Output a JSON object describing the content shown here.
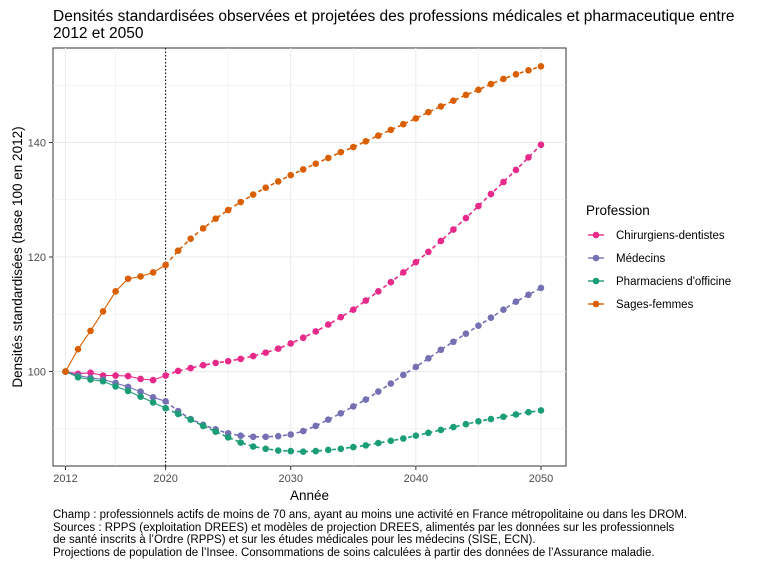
{
  "title": "Densités standardisées observées et projetées des professions médicales et pharmaceutique entre 2012 et 2050",
  "caption": [
    "Champ : professionnels actifs de moins de 70 ans, ayant au moins une activité en France métropolitaine ou dans les DROM.",
    "Sources : RPPS (exploitation DREES) et modèles de projection DREES, alimentés par les données sur les professionnels",
    "de santé inscrits à l’Ordre (RPPS) et sur les études médicales pour les médecins (SISE, ECN).",
    "Projections de population de l’Insee. Consommations de soins calculées à partir des données de l’Assurance maladie."
  ],
  "chart_data": {
    "type": "line",
    "title": "Densités standardisées observées et projetées des professions médicales et pharmaceutique entre 2012 et 2050",
    "xlabel": "Année",
    "ylabel": "Densités standardisées (base 100 en 2012)",
    "xlim": [
      2011,
      2052
    ],
    "ylim": [
      83.5,
      156.5
    ],
    "xticks": [
      2012,
      2020,
      2030,
      2040,
      2050
    ],
    "yticks": [
      100,
      120,
      140
    ],
    "projection_start_year": 2020,
    "legend_title": "Profession",
    "legend_position": "right",
    "grid": true,
    "x": [
      2012,
      2013,
      2014,
      2015,
      2016,
      2017,
      2018,
      2019,
      2020,
      2021,
      2022,
      2023,
      2024,
      2025,
      2026,
      2027,
      2028,
      2029,
      2030,
      2031,
      2032,
      2033,
      2034,
      2035,
      2036,
      2037,
      2038,
      2039,
      2040,
      2041,
      2042,
      2043,
      2044,
      2045,
      2046,
      2047,
      2048,
      2049,
      2050
    ],
    "series": [
      {
        "name": "Chirurgiens-dentistes",
        "color": "#e7298a",
        "values": [
          100,
          99.6,
          99.8,
          99.3,
          99.3,
          99.2,
          98.7,
          98.5,
          99.3,
          100.1,
          100.6,
          101.1,
          101.5,
          101.8,
          102.2,
          102.7,
          103.3,
          104.0,
          104.9,
          105.9,
          107.0,
          108.2,
          109.5,
          110.8,
          112.4,
          114.0,
          115.6,
          117.3,
          119.1,
          120.9,
          122.8,
          124.8,
          126.8,
          128.9,
          131.0,
          133.1,
          135.2,
          137.4,
          139.6
        ]
      },
      {
        "name": "Médecins",
        "color": "#7570b3",
        "values": [
          100,
          99.3,
          98.9,
          98.6,
          98.0,
          97.3,
          96.5,
          95.5,
          94.8,
          93.1,
          91.7,
          90.7,
          89.9,
          89.2,
          88.8,
          88.6,
          88.6,
          88.7,
          89.0,
          89.6,
          90.5,
          91.6,
          92.7,
          93.9,
          95.1,
          96.5,
          97.9,
          99.4,
          100.8,
          102.3,
          103.8,
          105.2,
          106.6,
          108.0,
          109.4,
          110.8,
          112.2,
          113.4,
          114.6
        ]
      },
      {
        "name": "Pharmaciens d'officine",
        "color": "#1b9e77",
        "values": [
          100,
          99.0,
          98.6,
          98.3,
          97.4,
          96.6,
          95.6,
          94.6,
          93.6,
          92.6,
          91.6,
          90.5,
          89.5,
          88.5,
          87.6,
          86.9,
          86.5,
          86.2,
          86.1,
          86.0,
          86.1,
          86.3,
          86.5,
          86.8,
          87.1,
          87.5,
          87.9,
          88.3,
          88.8,
          89.3,
          89.8,
          90.3,
          90.8,
          91.3,
          91.7,
          92.1,
          92.5,
          92.9,
          93.2
        ]
      },
      {
        "name": "Sages-femmes",
        "color": "#d95f02",
        "values": [
          100,
          103.9,
          107.1,
          110.5,
          114.0,
          116.2,
          116.6,
          117.3,
          118.6,
          121.1,
          123.2,
          125.0,
          126.7,
          128.2,
          129.6,
          130.9,
          132.1,
          133.2,
          134.3,
          135.3,
          136.3,
          137.3,
          138.3,
          139.2,
          140.2,
          141.2,
          142.2,
          143.2,
          144.2,
          145.3,
          146.3,
          147.3,
          148.3,
          149.2,
          150.2,
          151.1,
          151.9,
          152.6,
          153.3
        ]
      }
    ]
  }
}
